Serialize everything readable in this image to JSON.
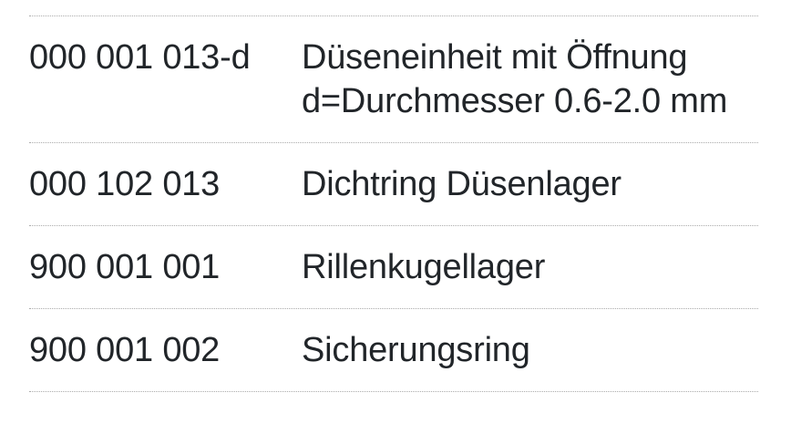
{
  "parts_table": {
    "rows": [
      {
        "part_number": "000 001 013-d",
        "description": "Düseneinheit mit Öffnung d=Durchmesser 0.6-2.0 mm"
      },
      {
        "part_number": "000 102 013",
        "description": "Dichtring Düsenlager"
      },
      {
        "part_number": "900 001 001",
        "description": "Rillenkugellager"
      },
      {
        "part_number": "900 001 002",
        "description": "Sicherungsring"
      }
    ]
  },
  "colors": {
    "text": "#212529",
    "divider": "#ababab",
    "background": "#ffffff"
  }
}
